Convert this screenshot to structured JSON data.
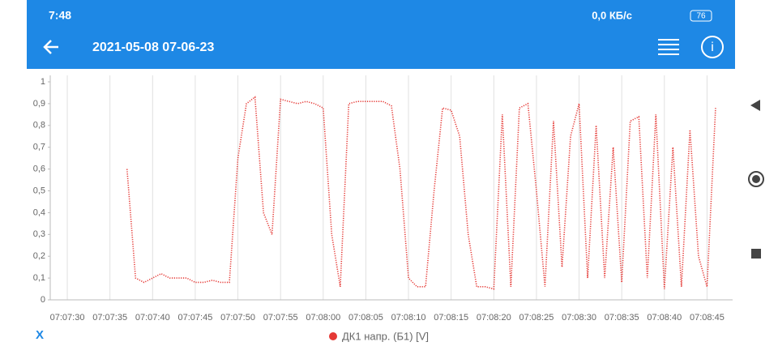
{
  "status_bar": {
    "time": "7:48",
    "network": "0,0 КБ/с",
    "battery": "76"
  },
  "app_bar": {
    "title": "2021-05-08 07-06-23"
  },
  "x_axis_button": "X",
  "chart_data": {
    "type": "line",
    "x": [
      "07:07:37",
      "07:07:38",
      "07:07:39",
      "07:07:40",
      "07:07:41",
      "07:07:42",
      "07:07:43",
      "07:07:44",
      "07:07:45",
      "07:07:46",
      "07:07:47",
      "07:07:48",
      "07:07:49",
      "07:07:50",
      "07:07:51",
      "07:07:52",
      "07:07:53",
      "07:07:54",
      "07:07:55",
      "07:07:56",
      "07:07:57",
      "07:07:58",
      "07:07:59",
      "07:08:00",
      "07:08:01",
      "07:08:02",
      "07:08:03",
      "07:08:04",
      "07:08:05",
      "07:08:06",
      "07:08:07",
      "07:08:08",
      "07:08:09",
      "07:08:10",
      "07:08:11",
      "07:08:12",
      "07:08:13",
      "07:08:14",
      "07:08:15",
      "07:08:16",
      "07:08:17",
      "07:08:18",
      "07:08:19",
      "07:08:20",
      "07:08:21",
      "07:08:22",
      "07:08:23",
      "07:08:24",
      "07:08:25",
      "07:08:26",
      "07:08:27",
      "07:08:28",
      "07:08:29",
      "07:08:30",
      "07:08:31",
      "07:08:32",
      "07:08:33",
      "07:08:34",
      "07:08:35",
      "07:08:36",
      "07:08:37",
      "07:08:38",
      "07:08:39",
      "07:08:40",
      "07:08:41",
      "07:08:42",
      "07:08:43",
      "07:08:44",
      "07:08:45",
      "07:08:46"
    ],
    "series": [
      {
        "name": "ДК1 напр. (Б1) [V]",
        "color": "#e53935",
        "values": [
          0.6,
          0.1,
          0.08,
          0.1,
          0.12,
          0.1,
          0.1,
          0.1,
          0.08,
          0.08,
          0.09,
          0.08,
          0.08,
          0.65,
          0.9,
          0.93,
          0.4,
          0.3,
          0.92,
          0.91,
          0.9,
          0.91,
          0.9,
          0.88,
          0.3,
          0.06,
          0.9,
          0.91,
          0.91,
          0.91,
          0.91,
          0.89,
          0.6,
          0.1,
          0.06,
          0.06,
          0.5,
          0.88,
          0.87,
          0.75,
          0.3,
          0.06,
          0.06,
          0.05,
          0.85,
          0.06,
          0.88,
          0.9,
          0.5,
          0.06,
          0.82,
          0.15,
          0.75,
          0.9,
          0.1,
          0.8,
          0.1,
          0.7,
          0.08,
          0.82,
          0.84,
          0.1,
          0.85,
          0.05,
          0.7,
          0.06,
          0.78,
          0.2,
          0.06,
          0.88
        ]
      }
    ],
    "xlim": [
      "07:07:28",
      "07:08:48"
    ],
    "xticks": [
      "07:07:30",
      "07:07:35",
      "07:07:40",
      "07:07:45",
      "07:07:50",
      "07:07:55",
      "07:08:00",
      "07:08:05",
      "07:08:10",
      "07:08:15",
      "07:08:20",
      "07:08:25",
      "07:08:30",
      "07:08:35",
      "07:08:40",
      "07:08:45"
    ],
    "ylim": [
      0,
      1
    ],
    "yticks": [
      0,
      {
        "value": 0.1,
        "label": "0,1"
      },
      {
        "value": 0.2,
        "label": "0,2"
      },
      {
        "value": 0.3,
        "label": "0,3"
      },
      {
        "value": 0.4,
        "label": "0,4"
      },
      {
        "value": 0.5,
        "label": "0,5"
      },
      {
        "value": 0.6,
        "label": "0,6"
      },
      {
        "value": 0.7,
        "label": "0,7"
      },
      {
        "value": 0.8,
        "label": "0,8"
      },
      {
        "value": 0.9,
        "label": "0,9"
      },
      1
    ],
    "grid": true
  }
}
